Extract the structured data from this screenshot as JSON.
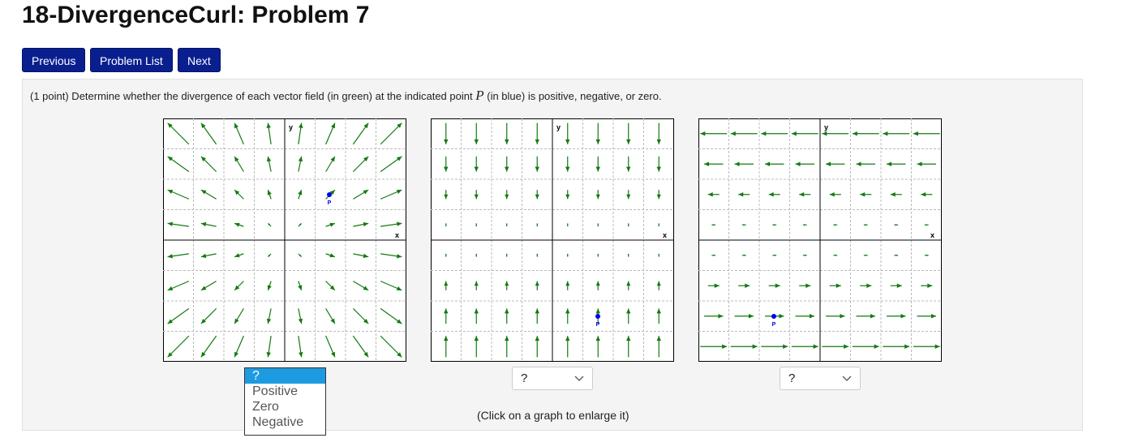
{
  "header": {
    "title": "18-DivergenceCurl: Problem 7"
  },
  "nav": {
    "buttons": [
      "Previous",
      "Problem List",
      "Next"
    ]
  },
  "problem": {
    "text_before": "(1 point) Determine whether the divergence of each vector field (in green) at the indicated point",
    "point_symbol": "P",
    "text_after": "(in blue) is positive, negative, or zero."
  },
  "graphs": [
    {
      "x_label": "x",
      "y_label": "y",
      "point_label": "P",
      "answer": "?"
    },
    {
      "x_label": "x",
      "y_label": "y",
      "point_label": "P",
      "answer": "?"
    },
    {
      "x_label": "x",
      "y_label": "y",
      "point_label": "P",
      "answer": "?"
    }
  ],
  "answer_options": [
    "?",
    "Positive",
    "Zero",
    "Negative"
  ],
  "note": "(Click on a graph to enlarge it)"
}
